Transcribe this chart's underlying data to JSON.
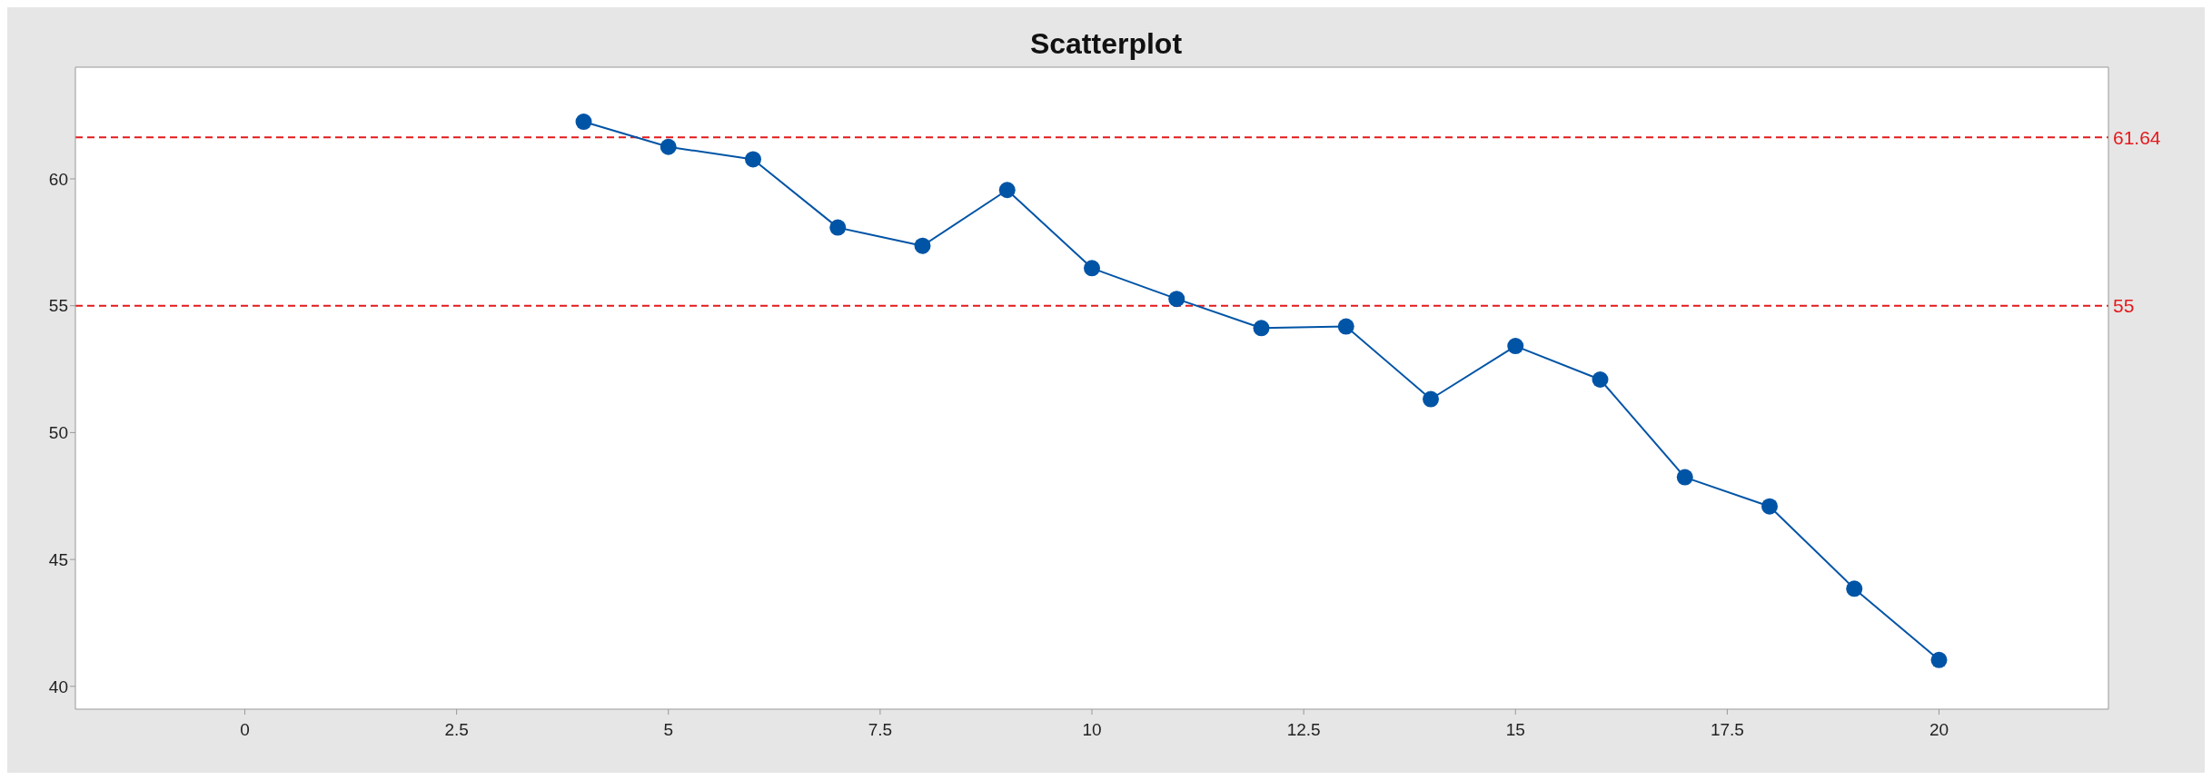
{
  "chart_data": {
    "type": "line",
    "title": "Scatterplot",
    "x": [
      4,
      5,
      6,
      7,
      8,
      9,
      10,
      11,
      12,
      13,
      14,
      15,
      16,
      17,
      18,
      19,
      20
    ],
    "series": [
      {
        "color": "#0054a6",
        "values": [
          62.25,
          61.26,
          60.77,
          58.08,
          57.36,
          59.56,
          56.48,
          55.27,
          54.12,
          54.18,
          51.32,
          53.41,
          52.09,
          48.24,
          47.09,
          43.85,
          41.04
        ]
      }
    ],
    "xlim": [
      -2,
      22
    ],
    "xticks": [
      0,
      2.5,
      5,
      7.5,
      10,
      12.5,
      15,
      17.5,
      20
    ],
    "ylim": [
      39.1,
      64.4
    ],
    "yticks": [
      40,
      45,
      50,
      55,
      60
    ],
    "ref_lines": [
      {
        "axis": "y",
        "value": 61.64,
        "label": "61.64",
        "color": "#e31a1c",
        "line_style": "dashed"
      },
      {
        "axis": "y",
        "value": 55,
        "label": "55",
        "color": "#e31a1c",
        "line_style": "dashed"
      }
    ],
    "marker": "circle",
    "line_style": "solid",
    "grid": false,
    "legend": false
  }
}
